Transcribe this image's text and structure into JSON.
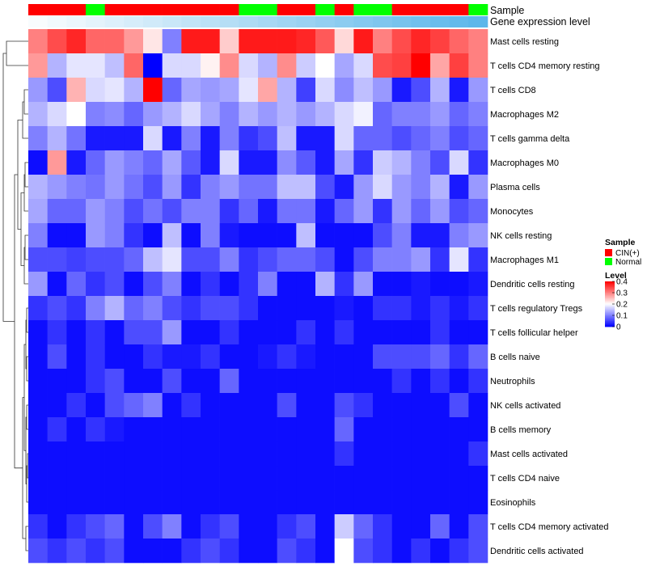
{
  "chart_data": {
    "type": "heatmap",
    "title": "",
    "annotation_rows": [
      "Sample",
      "Gene expression level"
    ],
    "sample_groups": [
      "CIN(+)",
      "CIN(+)",
      "CIN(+)",
      "Normal",
      "CIN(+)",
      "CIN(+)",
      "CIN(+)",
      "CIN(+)",
      "CIN(+)",
      "CIN(+)",
      "CIN(+)",
      "Normal",
      "Normal",
      "CIN(+)",
      "CIN(+)",
      "Normal",
      "CIN(+)",
      "Normal",
      "Normal",
      "CIN(+)",
      "CIN(+)",
      "CIN(+)",
      "CIN(+)",
      "Normal"
    ],
    "expression_level": [
      0.02,
      0.04,
      0.06,
      0.08,
      0.1,
      0.12,
      0.14,
      0.16,
      0.18,
      0.2,
      0.22,
      0.24,
      0.26,
      0.28,
      0.3,
      0.32,
      0.34,
      0.36,
      0.38,
      0.4,
      0.42,
      0.44,
      0.46,
      0.48
    ],
    "rows": [
      "Mast cells resting",
      "T cells CD4 memory resting",
      "T cells CD8",
      "Macrophages M2",
      "T cells gamma delta",
      "Macrophages M0",
      "Plasma cells",
      "Monocytes",
      "NK cells resting",
      "Macrophages M1",
      "Dendritic cells resting",
      "T cells regulatory  Tregs",
      "T cells follicular helper",
      "B cells naive",
      "Neutrophils",
      "NK cells activated",
      "B cells memory",
      "Mast cells activated",
      "T cells CD4 naive",
      "Eosinophils",
      "T cells CD4 memory activated",
      "Dendritic cells activated"
    ],
    "values": [
      [
        0.3,
        0.34,
        0.37,
        0.32,
        0.32,
        0.28,
        0.22,
        0.1,
        0.38,
        0.38,
        0.24,
        0.38,
        0.38,
        0.38,
        0.37,
        0.33,
        0.23,
        0.38,
        0.3,
        0.34,
        0.37,
        0.35,
        0.32,
        0.3
      ],
      [
        0.28,
        0.14,
        0.18,
        0.18,
        0.15,
        0.32,
        0.0,
        0.17,
        0.17,
        0.21,
        0.29,
        0.17,
        0.14,
        0.29,
        0.16,
        0.2,
        0.13,
        0.17,
        0.34,
        0.35,
        0.4,
        0.27,
        0.35,
        0.3
      ],
      [
        0.12,
        0.06,
        0.26,
        0.17,
        0.18,
        0.14,
        0.4,
        0.08,
        0.13,
        0.12,
        0.13,
        0.18,
        0.27,
        0.14,
        0.05,
        0.17,
        0.11,
        0.15,
        0.12,
        0.02,
        0.06,
        0.14,
        0.02,
        0.12
      ],
      [
        0.14,
        0.17,
        0.2,
        0.1,
        0.11,
        0.08,
        0.12,
        0.14,
        0.17,
        0.13,
        0.1,
        0.14,
        0.12,
        0.14,
        0.12,
        0.14,
        0.17,
        0.19,
        0.08,
        0.1,
        0.1,
        0.12,
        0.08,
        0.1
      ],
      [
        0.1,
        0.14,
        0.09,
        0.02,
        0.02,
        0.02,
        0.17,
        0.02,
        0.1,
        0.02,
        0.1,
        0.04,
        0.06,
        0.15,
        0.02,
        0.02,
        0.17,
        0.08,
        0.08,
        0.06,
        0.08,
        0.1,
        0.06,
        0.08
      ],
      [
        0.01,
        0.28,
        0.02,
        0.08,
        0.12,
        0.1,
        0.08,
        0.13,
        0.07,
        0.02,
        0.17,
        0.02,
        0.02,
        0.11,
        0.07,
        0.02,
        0.13,
        0.04,
        0.16,
        0.14,
        0.1,
        0.06,
        0.17,
        0.04
      ],
      [
        0.14,
        0.12,
        0.1,
        0.09,
        0.12,
        0.09,
        0.06,
        0.12,
        0.04,
        0.1,
        0.12,
        0.09,
        0.09,
        0.15,
        0.15,
        0.06,
        0.02,
        0.12,
        0.17,
        0.12,
        0.1,
        0.14,
        0.02,
        0.12
      ],
      [
        0.13,
        0.08,
        0.08,
        0.12,
        0.1,
        0.06,
        0.09,
        0.06,
        0.1,
        0.1,
        0.04,
        0.08,
        0.02,
        0.09,
        0.09,
        0.02,
        0.08,
        0.12,
        0.04,
        0.12,
        0.08,
        0.12,
        0.06,
        0.08
      ],
      [
        0.1,
        0.01,
        0.01,
        0.12,
        0.1,
        0.04,
        0.01,
        0.15,
        0.01,
        0.1,
        0.02,
        0.01,
        0.01,
        0.01,
        0.15,
        0.01,
        0.01,
        0.01,
        0.06,
        0.1,
        0.02,
        0.02,
        0.1,
        0.12
      ],
      [
        0.06,
        0.06,
        0.05,
        0.06,
        0.06,
        0.08,
        0.15,
        0.18,
        0.06,
        0.06,
        0.1,
        0.04,
        0.06,
        0.08,
        0.08,
        0.06,
        0.01,
        0.06,
        0.1,
        0.1,
        0.12,
        0.04,
        0.18,
        0.04
      ],
      [
        0.12,
        0.01,
        0.08,
        0.04,
        0.06,
        0.01,
        0.06,
        0.1,
        0.01,
        0.04,
        0.01,
        0.04,
        0.1,
        0.01,
        0.01,
        0.14,
        0.04,
        0.12,
        0.01,
        0.01,
        0.02,
        0.01,
        0.01,
        0.02
      ],
      [
        0.04,
        0.06,
        0.04,
        0.1,
        0.14,
        0.08,
        0.1,
        0.06,
        0.04,
        0.06,
        0.06,
        0.04,
        0.01,
        0.01,
        0.01,
        0.01,
        0.02,
        0.01,
        0.04,
        0.04,
        0.02,
        0.04,
        0.02,
        0.04
      ],
      [
        0.01,
        0.04,
        0.01,
        0.04,
        0.01,
        0.06,
        0.06,
        0.12,
        0.01,
        0.01,
        0.04,
        0.01,
        0.01,
        0.01,
        0.04,
        0.01,
        0.04,
        0.01,
        0.01,
        0.01,
        0.01,
        0.04,
        0.01,
        0.01
      ],
      [
        0.01,
        0.06,
        0.01,
        0.04,
        0.01,
        0.01,
        0.04,
        0.02,
        0.02,
        0.04,
        0.01,
        0.01,
        0.02,
        0.04,
        0.02,
        0.01,
        0.01,
        0.01,
        0.06,
        0.06,
        0.06,
        0.08,
        0.04,
        0.08
      ],
      [
        0.01,
        0.01,
        0.01,
        0.04,
        0.06,
        0.01,
        0.01,
        0.06,
        0.01,
        0.01,
        0.08,
        0.01,
        0.01,
        0.01,
        0.01,
        0.01,
        0.01,
        0.01,
        0.01,
        0.04,
        0.01,
        0.04,
        0.01,
        0.04
      ],
      [
        0.01,
        0.01,
        0.04,
        0.01,
        0.06,
        0.08,
        0.1,
        0.01,
        0.04,
        0.01,
        0.01,
        0.01,
        0.01,
        0.06,
        0.01,
        0.01,
        0.06,
        0.04,
        0.01,
        0.01,
        0.01,
        0.01,
        0.06,
        0.01
      ],
      [
        0.01,
        0.04,
        0.01,
        0.04,
        0.02,
        0.01,
        0.01,
        0.01,
        0.01,
        0.01,
        0.01,
        0.01,
        0.01,
        0.01,
        0.01,
        0.01,
        0.08,
        0.01,
        0.01,
        0.01,
        0.01,
        0.01,
        0.01,
        0.01
      ],
      [
        0.01,
        0.01,
        0.01,
        0.01,
        0.01,
        0.01,
        0.01,
        0.01,
        0.01,
        0.01,
        0.01,
        0.01,
        0.01,
        0.01,
        0.01,
        0.01,
        0.04,
        0.01,
        0.01,
        0.01,
        0.01,
        0.01,
        0.01,
        0.04
      ],
      [
        0.01,
        0.01,
        0.01,
        0.01,
        0.01,
        0.01,
        0.01,
        0.01,
        0.01,
        0.01,
        0.01,
        0.01,
        0.01,
        0.01,
        0.01,
        0.01,
        0.01,
        0.01,
        0.01,
        0.01,
        0.01,
        0.01,
        0.01,
        0.01
      ],
      [
        0.01,
        0.01,
        0.01,
        0.01,
        0.01,
        0.01,
        0.01,
        0.01,
        0.01,
        0.01,
        0.01,
        0.01,
        0.01,
        0.01,
        0.01,
        0.01,
        0.01,
        0.01,
        0.01,
        0.01,
        0.01,
        0.01,
        0.01,
        0.01
      ],
      [
        0.04,
        0.01,
        0.04,
        0.06,
        0.08,
        0.01,
        0.06,
        0.1,
        0.01,
        0.04,
        0.06,
        0.01,
        0.01,
        0.04,
        0.06,
        0.01,
        0.16,
        0.08,
        0.04,
        0.01,
        0.01,
        0.08,
        0.01,
        0.06
      ],
      [
        0.06,
        0.04,
        0.06,
        0.04,
        0.06,
        0.01,
        0.01,
        0.01,
        0.04,
        0.06,
        0.04,
        0.01,
        0.01,
        0.06,
        0.04,
        0.01,
        0.2,
        0.06,
        0.04,
        0.01,
        0.04,
        0.01,
        0.04,
        0.06
      ]
    ],
    "legend": {
      "sample_title": "Sample",
      "sample_entries": [
        {
          "label": "CIN(+)",
          "color": "#ff0000"
        },
        {
          "label": "Normal",
          "color": "#00ff00"
        }
      ],
      "level_title": "Level",
      "level_ticks": [
        "0.4",
        "0.3",
        "0.2",
        "0.1",
        "0"
      ],
      "level_range": [
        0,
        0.4
      ],
      "expression_range": [
        0,
        0.5
      ]
    },
    "colors": {
      "low": "#0000ff",
      "mid": "#ffffff",
      "high": "#ff0000",
      "annotation_low": "#ffffff",
      "annotation_high": "#56b4e9",
      "dendrogram": "#333333"
    }
  }
}
